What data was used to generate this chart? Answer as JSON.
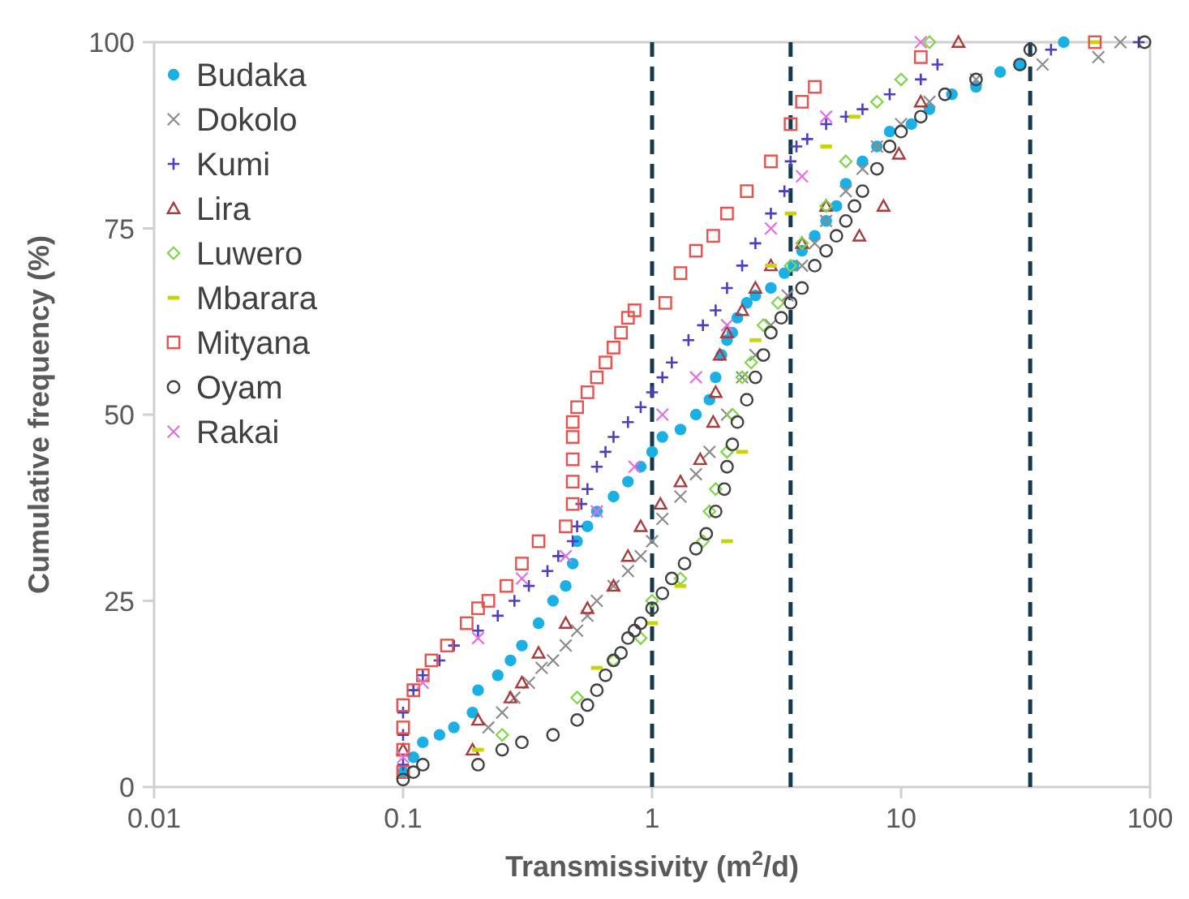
{
  "chart_data": {
    "type": "scatter",
    "xlabel": "Transmissivity (m$^{2}$/d)",
    "ylabel": "Cumulative frequency (%)",
    "log": "x",
    "xlim": [
      0.01,
      100
    ],
    "xticks": [
      0.01,
      0.1,
      1,
      10,
      100
    ],
    "ylim": [
      0,
      100
    ],
    "yticks": [
      0,
      25,
      50,
      75,
      100
    ],
    "grid": false,
    "legend": "top left",
    "ref_lines": [
      {
        "axis": "x",
        "value": 1,
        "color": "#17394d",
        "line_style": "dashed"
      },
      {
        "axis": "x",
        "value": 3.6,
        "color": "#17394d",
        "line_style": "dashed"
      },
      {
        "axis": "x",
        "value": 33,
        "color": "#17394d",
        "line_style": "dashed"
      }
    ],
    "series": [
      {
        "name": "Budaka",
        "color": "#1ab0e6",
        "marker": "circle",
        "x": [
          0.1,
          0.11,
          0.12,
          0.14,
          0.16,
          0.19,
          0.2,
          0.24,
          0.27,
          0.3,
          0.35,
          0.4,
          0.45,
          0.48,
          0.5,
          0.55,
          0.6,
          0.7,
          0.8,
          0.9,
          1,
          1.1,
          1.3,
          1.5,
          1.7,
          1.8,
          1.9,
          2,
          2.1,
          2.2,
          2.4,
          2.6,
          3,
          3.4,
          3.7,
          4,
          4.5,
          5,
          5.5,
          6,
          7,
          8,
          9,
          11,
          13,
          16,
          20,
          25,
          30,
          45
        ],
        "values": [
          2,
          4,
          6,
          7,
          8,
          10,
          13,
          15,
          17,
          19,
          22,
          25,
          27,
          30,
          33,
          35,
          37,
          39,
          41,
          43,
          45,
          47,
          48,
          50,
          52,
          55,
          58,
          60,
          61,
          63,
          65,
          66,
          67,
          69,
          70,
          72,
          74,
          76,
          78,
          81,
          84,
          86,
          88,
          89,
          91,
          93,
          94,
          96,
          97,
          100
        ]
      },
      {
        "name": "Dokolo",
        "color": "#8c8c8c",
        "marker": "cross",
        "x": [
          0.22,
          0.25,
          0.28,
          0.32,
          0.36,
          0.4,
          0.45,
          0.5,
          0.55,
          0.6,
          0.7,
          0.8,
          0.9,
          1,
          1.1,
          1.3,
          1.5,
          1.7,
          2,
          2.3,
          2.6,
          3,
          3.5,
          4,
          4.5,
          5,
          6,
          7,
          8,
          10,
          13,
          20,
          37,
          62,
          76
        ],
        "values": [
          8,
          10,
          12,
          14,
          16,
          17,
          19,
          21,
          23,
          25,
          27,
          29,
          31,
          33,
          36,
          39,
          42,
          45,
          50,
          55,
          58,
          62,
          66,
          70,
          73,
          76,
          80,
          83,
          86,
          89,
          92,
          95,
          97,
          98,
          100
        ]
      },
      {
        "name": "Kumi",
        "color": "#4b3fc0",
        "marker": "plus",
        "x": [
          0.1,
          0.1,
          0.1,
          0.11,
          0.12,
          0.14,
          0.16,
          0.2,
          0.24,
          0.28,
          0.32,
          0.38,
          0.42,
          0.48,
          0.5,
          0.52,
          0.55,
          0.6,
          0.65,
          0.7,
          0.8,
          0.9,
          1,
          1.1,
          1.2,
          1.4,
          1.6,
          1.8,
          2,
          2.3,
          2.6,
          3,
          3.4,
          3.6,
          3.8,
          4.2,
          5,
          6,
          7,
          9,
          12,
          14,
          40,
          90
        ],
        "values": [
          3,
          7,
          10,
          13,
          15,
          17,
          19,
          21,
          23,
          25,
          27,
          29,
          31,
          33,
          35,
          38,
          40,
          43,
          45,
          47,
          49,
          51,
          53,
          55,
          57,
          60,
          62,
          64,
          67,
          70,
          73,
          77,
          80,
          84,
          86,
          87,
          89,
          90,
          91,
          93,
          95,
          97,
          99,
          100
        ]
      },
      {
        "name": "Lira",
        "color": "#a63c3c",
        "marker": "triangle",
        "x": [
          0.1,
          0.19,
          0.2,
          0.27,
          0.3,
          0.35,
          0.45,
          0.55,
          0.7,
          0.8,
          0.9,
          1.08,
          1.3,
          1.56,
          1.76,
          1.8,
          1.87,
          2,
          2.3,
          2.6,
          3,
          4,
          5,
          6.8,
          8.5,
          9.8,
          12,
          17
        ],
        "values": [
          5,
          5,
          9,
          12,
          14,
          18,
          22,
          24,
          27,
          31,
          35,
          38,
          41,
          44,
          49,
          53,
          58,
          61,
          64,
          67,
          70,
          73,
          78,
          74,
          78,
          85,
          92,
          100
        ]
      },
      {
        "name": "Luwero",
        "color": "#7fd44a",
        "marker": "diamond",
        "x": [
          0.25,
          0.5,
          0.7,
          0.9,
          1,
          1.3,
          1.6,
          1.7,
          1.8,
          2,
          2.1,
          2.3,
          2.5,
          2.8,
          3.2,
          3.6,
          4,
          5,
          6,
          8,
          10,
          13
        ],
        "values": [
          7,
          12,
          17,
          20,
          25,
          28,
          33,
          37,
          40,
          45,
          50,
          55,
          57,
          62,
          65,
          70,
          73,
          78,
          84,
          92,
          95,
          100
        ]
      },
      {
        "name": "Mbarara",
        "color": "#c8d400",
        "x": [
          0.2,
          0.6,
          1,
          1.3,
          2,
          2.3,
          2.6,
          3,
          3.6,
          5,
          6.5,
          60
        ],
        "values": [
          5,
          16,
          22,
          27,
          33,
          45,
          60,
          70,
          77,
          86,
          90,
          100
        ]
      },
      {
        "name": "Mityana",
        "color": "#e8524e",
        "marker": "square",
        "x": [
          0.1,
          0.1,
          0.1,
          0.1,
          0.11,
          0.12,
          0.13,
          0.15,
          0.18,
          0.2,
          0.22,
          0.26,
          0.3,
          0.35,
          0.45,
          0.48,
          0.48,
          0.48,
          0.48,
          0.48,
          0.5,
          0.55,
          0.6,
          0.65,
          0.7,
          0.75,
          0.8,
          0.85,
          1.13,
          1.3,
          1.5,
          1.76,
          2,
          2.4,
          3,
          3.6,
          4,
          4.5,
          12,
          60
        ],
        "values": [
          2,
          5,
          8,
          11,
          13,
          15,
          17,
          19,
          22,
          24,
          25,
          27,
          30,
          33,
          35,
          38,
          41,
          44,
          47,
          49,
          51,
          53,
          55,
          57,
          59,
          61,
          63,
          64,
          65,
          69,
          72,
          74,
          77,
          80,
          84,
          89,
          92,
          94,
          98,
          100
        ]
      },
      {
        "name": "Oyam",
        "color": "#404040",
        "marker": "circle-open",
        "x": [
          0.1,
          0.11,
          0.12,
          0.2,
          0.25,
          0.3,
          0.4,
          0.5,
          0.55,
          0.6,
          0.65,
          0.7,
          0.75,
          0.8,
          0.85,
          0.9,
          1,
          1.1,
          1.2,
          1.35,
          1.5,
          1.65,
          1.8,
          1.95,
          2,
          2.1,
          2.2,
          2.4,
          2.6,
          2.8,
          3,
          3.3,
          3.6,
          4,
          4.5,
          5,
          5.5,
          6,
          6.5,
          7,
          8,
          9,
          10,
          12,
          15,
          20,
          30,
          33,
          95
        ],
        "values": [
          1,
          2,
          3,
          3,
          5,
          6,
          7,
          9,
          11,
          13,
          15,
          17,
          18,
          20,
          21,
          22,
          24,
          26,
          28,
          30,
          32,
          34,
          37,
          40,
          43,
          46,
          49,
          52,
          55,
          58,
          61,
          63,
          65,
          67,
          70,
          72,
          74,
          76,
          78,
          80,
          83,
          86,
          88,
          90,
          93,
          95,
          97,
          99,
          100
        ]
      },
      {
        "name": "Rakai",
        "color": "#e070e0",
        "marker": "cross",
        "x": [
          0.1,
          0.12,
          0.2,
          0.3,
          0.45,
          0.6,
          0.85,
          1.1,
          1.5,
          2,
          3,
          4,
          5,
          12
        ],
        "values": [
          4,
          14,
          20,
          28,
          31,
          37,
          43,
          50,
          55,
          62,
          75,
          82,
          90,
          100
        ]
      }
    ]
  }
}
